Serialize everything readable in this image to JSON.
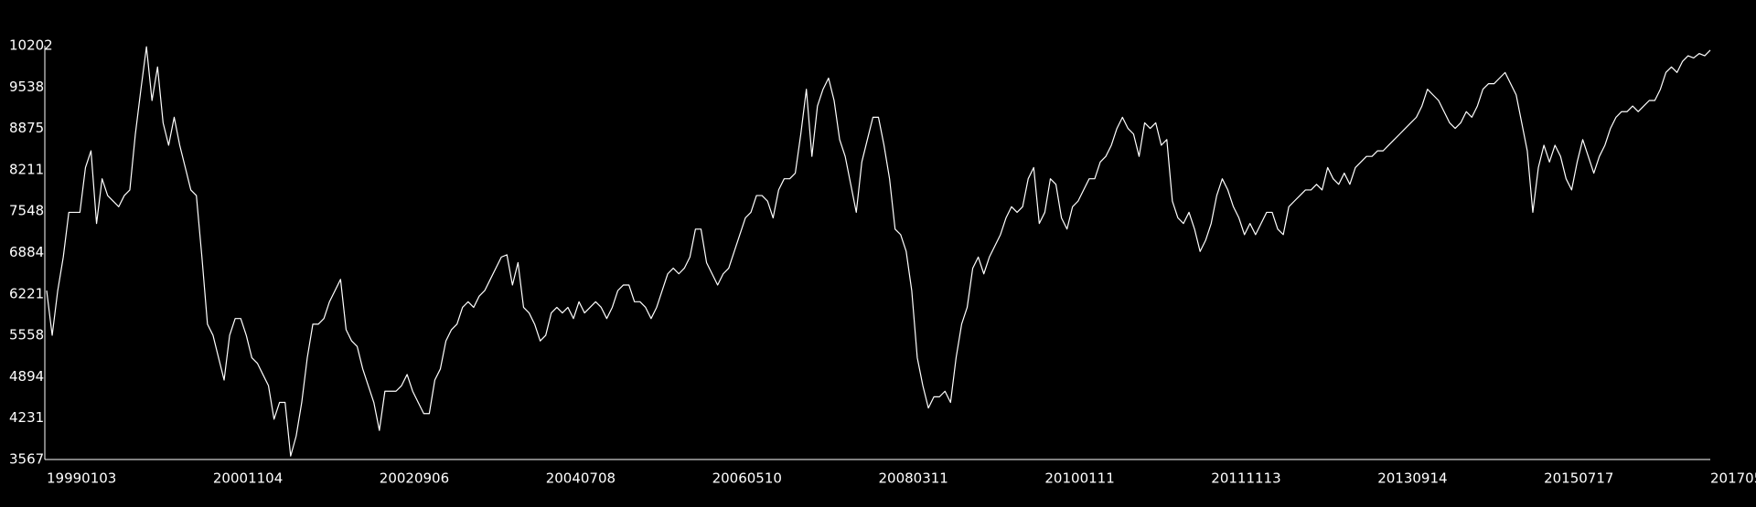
{
  "chart_data": {
    "type": "line",
    "categories": [
      "19990103",
      null,
      null,
      null,
      null,
      null,
      null,
      null,
      null,
      null,
      null,
      null,
      null,
      null,
      null,
      null,
      null,
      null,
      null,
      null,
      null,
      null,
      null,
      null,
      null,
      null,
      null,
      null,
      null,
      null,
      "20001104",
      null,
      null,
      null,
      null,
      null,
      null,
      null,
      null,
      null,
      null,
      null,
      null,
      null,
      null,
      null,
      null,
      null,
      null,
      null,
      null,
      null,
      null,
      null,
      null,
      null,
      null,
      null,
      null,
      null,
      "20020906",
      null,
      null,
      null,
      null,
      null,
      null,
      null,
      null,
      null,
      null,
      null,
      null,
      null,
      null,
      null,
      null,
      null,
      null,
      null,
      null,
      null,
      null,
      null,
      null,
      null,
      null,
      null,
      null,
      null,
      "20040708",
      null,
      null,
      null,
      null,
      null,
      null,
      null,
      null,
      null,
      null,
      null,
      null,
      null,
      null,
      null,
      null,
      null,
      null,
      null,
      null,
      null,
      null,
      null,
      null,
      null,
      null,
      null,
      null,
      null,
      "20060510",
      null,
      null,
      null,
      null,
      null,
      null,
      null,
      null,
      null,
      null,
      null,
      null,
      null,
      null,
      null,
      null,
      null,
      null,
      null,
      null,
      null,
      null,
      null,
      null,
      null,
      null,
      null,
      null,
      null,
      "20080311",
      null,
      null,
      null,
      null,
      null,
      null,
      null,
      null,
      null,
      null,
      null,
      null,
      null,
      null,
      null,
      null,
      null,
      null,
      null,
      null,
      null,
      null,
      null,
      null,
      null,
      null,
      null,
      null,
      null,
      "20100111",
      null,
      null,
      null,
      null,
      null,
      null,
      null,
      null,
      null,
      null,
      null,
      null,
      null,
      null,
      null,
      null,
      null,
      null,
      null,
      null,
      null,
      null,
      null,
      null,
      null,
      null,
      null,
      null,
      null,
      "20111113",
      null,
      null,
      null,
      null,
      null,
      null,
      null,
      null,
      null,
      null,
      null,
      null,
      null,
      null,
      null,
      null,
      null,
      null,
      null,
      null,
      null,
      null,
      null,
      null,
      null,
      null,
      null,
      null,
      null,
      "20130914",
      null,
      null,
      null,
      null,
      null,
      null,
      null,
      null,
      null,
      null,
      null,
      null,
      null,
      null,
      null,
      null,
      null,
      null,
      null,
      null,
      null,
      null,
      null,
      null,
      null,
      null,
      null,
      null,
      null,
      "20150717",
      null,
      null,
      null,
      null,
      null,
      null,
      null,
      null,
      null,
      null,
      null,
      null,
      null,
      null,
      null,
      null,
      null,
      null,
      null,
      null,
      null,
      null,
      null,
      null,
      null,
      null,
      null,
      null,
      null,
      "201705"
    ],
    "series": [
      {
        "color": "#ffffff",
        "values": [
          6275,
          5558,
          6275,
          6813,
          7530,
          7530,
          7530,
          8248,
          8516,
          7351,
          8068,
          7799,
          7710,
          7620,
          7799,
          7889,
          8785,
          9503,
          10184,
          9323,
          9861,
          8965,
          8606,
          9054,
          8606,
          8248,
          7889,
          7799,
          6813,
          5737,
          5558,
          5199,
          4841,
          5558,
          5827,
          5827,
          5558,
          5199,
          5110,
          4930,
          4751,
          4213,
          4482,
          4482,
          3622,
          3944,
          4482,
          5199,
          5737,
          5737,
          5827,
          6096,
          6275,
          6455,
          5648,
          5468,
          5379,
          5020,
          4751,
          4482,
          4034,
          4662,
          4662,
          4662,
          4751,
          4930,
          4662,
          4482,
          4303,
          4303,
          4841,
          5020,
          5468,
          5648,
          5737,
          6006,
          6096,
          6006,
          6186,
          6275,
          6455,
          6634,
          6813,
          6849,
          6365,
          6724,
          6006,
          5917,
          5737,
          5468,
          5558,
          5917,
          6006,
          5917,
          6006,
          5827,
          6096,
          5917,
          6006,
          6096,
          6006,
          5827,
          6006,
          6275,
          6365,
          6365,
          6096,
          6096,
          6006,
          5827,
          6006,
          6275,
          6544,
          6634,
          6544,
          6634,
          6813,
          7261,
          7261,
          6724,
          6544,
          6365,
          6544,
          6634,
          6903,
          7172,
          7441,
          7530,
          7799,
          7799,
          7710,
          7441,
          7889,
          8068,
          8068,
          8158,
          8785,
          9503,
          8427,
          9234,
          9503,
          9682,
          9323,
          8696,
          8427,
          7979,
          7530,
          8337,
          8696,
          9054,
          9054,
          8606,
          8068,
          7261,
          7172,
          6903,
          6275,
          5199,
          4751,
          4393,
          4572,
          4572,
          4662,
          4482,
          5199,
          5737,
          6006,
          6634,
          6813,
          6544,
          6813,
          6992,
          7172,
          7441,
          7620,
          7530,
          7620,
          8068,
          8248,
          7351,
          7530,
          8068,
          7979,
          7441,
          7261,
          7620,
          7710,
          7889,
          8068,
          8068,
          8337,
          8427,
          8606,
          8875,
          9054,
          8875,
          8785,
          8427,
          8965,
          8875,
          8965,
          8606,
          8696,
          7710,
          7441,
          7351,
          7530,
          7261,
          6903,
          7082,
          7351,
          7799,
          8068,
          7889,
          7620,
          7441,
          7172,
          7351,
          7172,
          7351,
          7530,
          7530,
          7261,
          7172,
          7620,
          7710,
          7799,
          7889,
          7889,
          7979,
          7889,
          8248,
          8068,
          7979,
          8158,
          7979,
          8248,
          8337,
          8427,
          8427,
          8516,
          8516,
          8606,
          8696,
          8785,
          8875,
          8965,
          9054,
          9234,
          9503,
          9413,
          9323,
          9144,
          8965,
          8875,
          8965,
          9144,
          9054,
          9234,
          9503,
          9592,
          9592,
          9682,
          9772,
          9592,
          9413,
          8965,
          8516,
          7530,
          8248,
          8606,
          8337,
          8606,
          8427,
          8068,
          7889,
          8337,
          8696,
          8427,
          8158,
          8427,
          8606,
          8875,
          9054,
          9144,
          9144,
          9234,
          9144,
          9234,
          9323,
          9323,
          9503,
          9772,
          9861,
          9772,
          9951,
          10040,
          10005,
          10076,
          10040,
          10130
        ]
      }
    ],
    "ylim": [
      3567,
      10202
    ],
    "yticks": [
      3567,
      4231,
      4894,
      5558,
      6221,
      6884,
      7548,
      8211,
      8875,
      9538,
      10202
    ],
    "grid": false
  }
}
